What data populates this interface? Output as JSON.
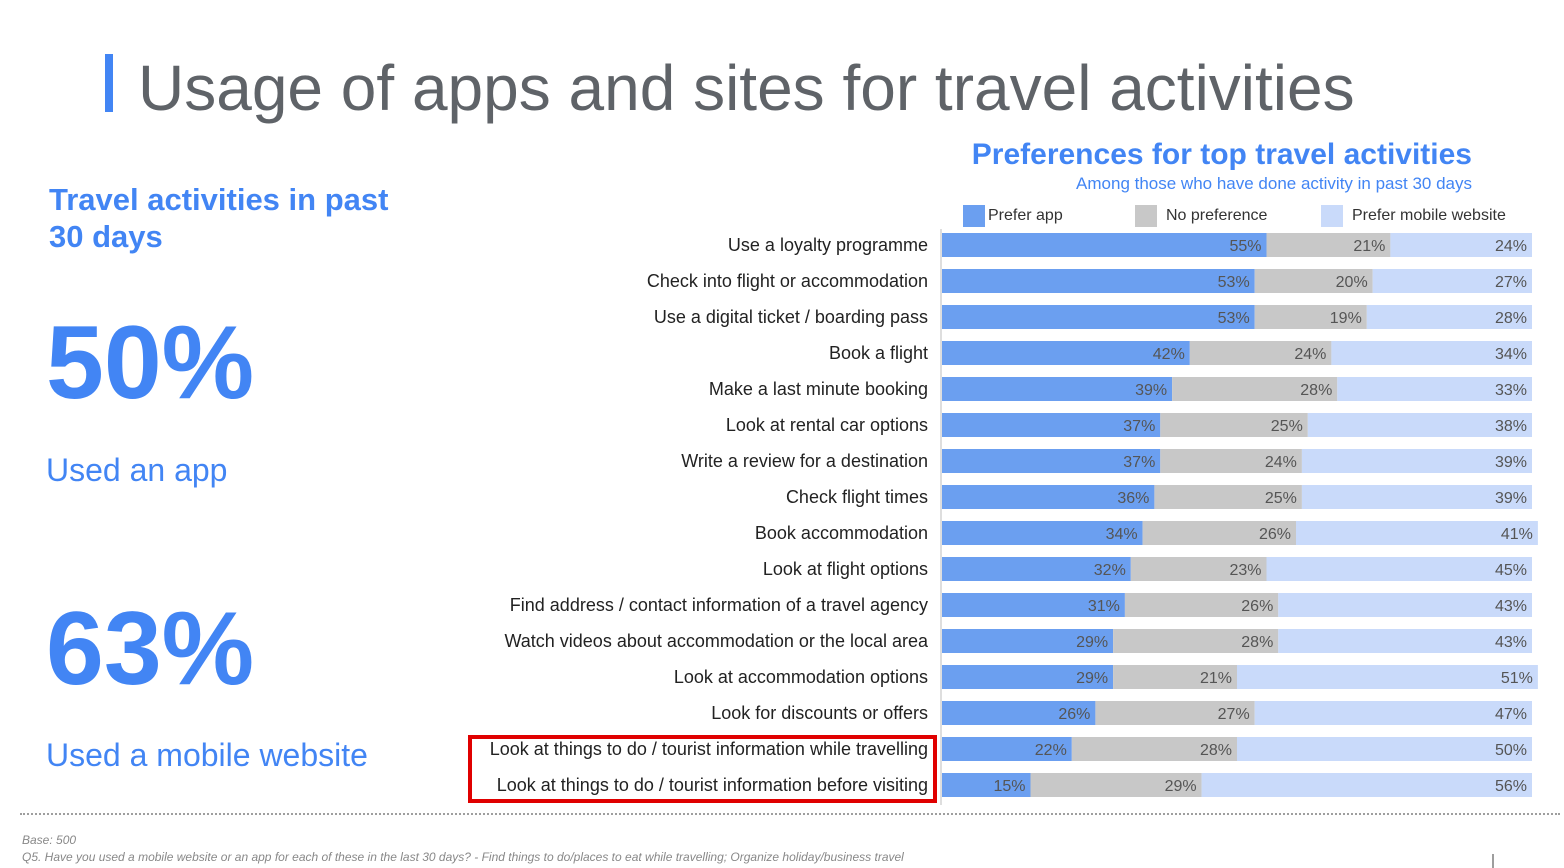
{
  "title": "Usage of apps and sites for travel activities",
  "left_panel": {
    "heading": "Travel activities in past 30 days",
    "stats": [
      {
        "value": "50%",
        "label": "Used an app"
      },
      {
        "value": "63%",
        "label": "Used a mobile website"
      }
    ]
  },
  "chart_data": {
    "type": "bar",
    "orientation": "horizontal",
    "stacked": true,
    "title": "Preferences for top travel activities",
    "subtitle": "Among those who have done activity in past 30 days",
    "legend_position": "top",
    "categories": [
      "Use a loyalty programme",
      "Check into flight or accommodation",
      "Use a digital ticket / boarding pass",
      "Book a flight",
      "Make a last minute booking",
      "Look at rental car options",
      "Write a review for a destination",
      "Check flight times",
      "Book accommodation",
      "Look at flight options",
      "Find address / contact information of a travel agency",
      "Watch videos about accommodation or the local area",
      "Look at accommodation options",
      "Look for discounts or offers",
      "Look at things to do / tourist information while travelling",
      "Look at things to do / tourist information before visiting"
    ],
    "series": [
      {
        "name": "Prefer app",
        "color": "#6b9ff0",
        "values": [
          55,
          53,
          53,
          42,
          39,
          37,
          37,
          36,
          34,
          32,
          31,
          29,
          29,
          26,
          22,
          15
        ]
      },
      {
        "name": "No preference",
        "color": "#c8c8c8",
        "values": [
          21,
          20,
          19,
          24,
          28,
          25,
          24,
          25,
          26,
          23,
          26,
          28,
          21,
          27,
          28,
          29
        ]
      },
      {
        "name": "Prefer mobile website",
        "color": "#c9dafa",
        "values": [
          24,
          27,
          28,
          34,
          33,
          38,
          39,
          39,
          41,
          45,
          43,
          43,
          51,
          47,
          50,
          56
        ]
      }
    ],
    "value_suffix": "%",
    "xlim": [
      0,
      100
    ],
    "highlighted_categories": [
      "Look at things to do / tourist information while travelling",
      "Look at things to do / tourist information before visiting"
    ],
    "highlight_color": "#e00000"
  },
  "footnotes": {
    "base": "Base: 500",
    "question": "Q5. Have you used a mobile website or an app for each of these in the last 30 days? - Find things to do/places to eat while travelling; Organize holiday/business travel"
  },
  "colors": {
    "accent": "#4285f4",
    "title_gray": "#5f6368"
  }
}
